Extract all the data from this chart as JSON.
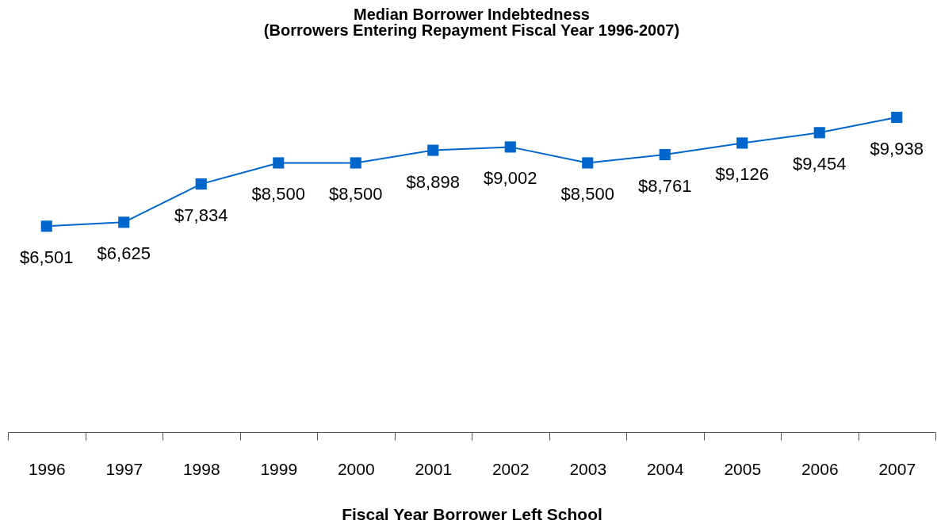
{
  "chart_data": {
    "type": "line",
    "title": "Median Borrower Indebtedness",
    "subtitle": "(Borrowers Entering Repayment Fiscal Year 1996-2007)",
    "xlabel": "Fiscal Year Borrower Left School",
    "categories": [
      "1996",
      "1997",
      "1998",
      "1999",
      "2000",
      "2001",
      "2002",
      "2003",
      "2004",
      "2005",
      "2006",
      "2007"
    ],
    "series": [
      {
        "color": "#0066cc",
        "values": [
          6501,
          6625,
          7834,
          8500,
          8500,
          8898,
          9002,
          8500,
          8761,
          9126,
          9454,
          9938
        ],
        "value_labels": [
          "$6,501",
          "$6,625",
          "$7,834",
          "$8,500",
          "$8,500",
          "$8,898",
          "$9,002",
          "$8,500",
          "$8,761",
          "$9,126",
          "$9,454",
          "$9,938"
        ]
      }
    ],
    "marker": "square",
    "line_style": "solid",
    "tick_labels": "x"
  }
}
